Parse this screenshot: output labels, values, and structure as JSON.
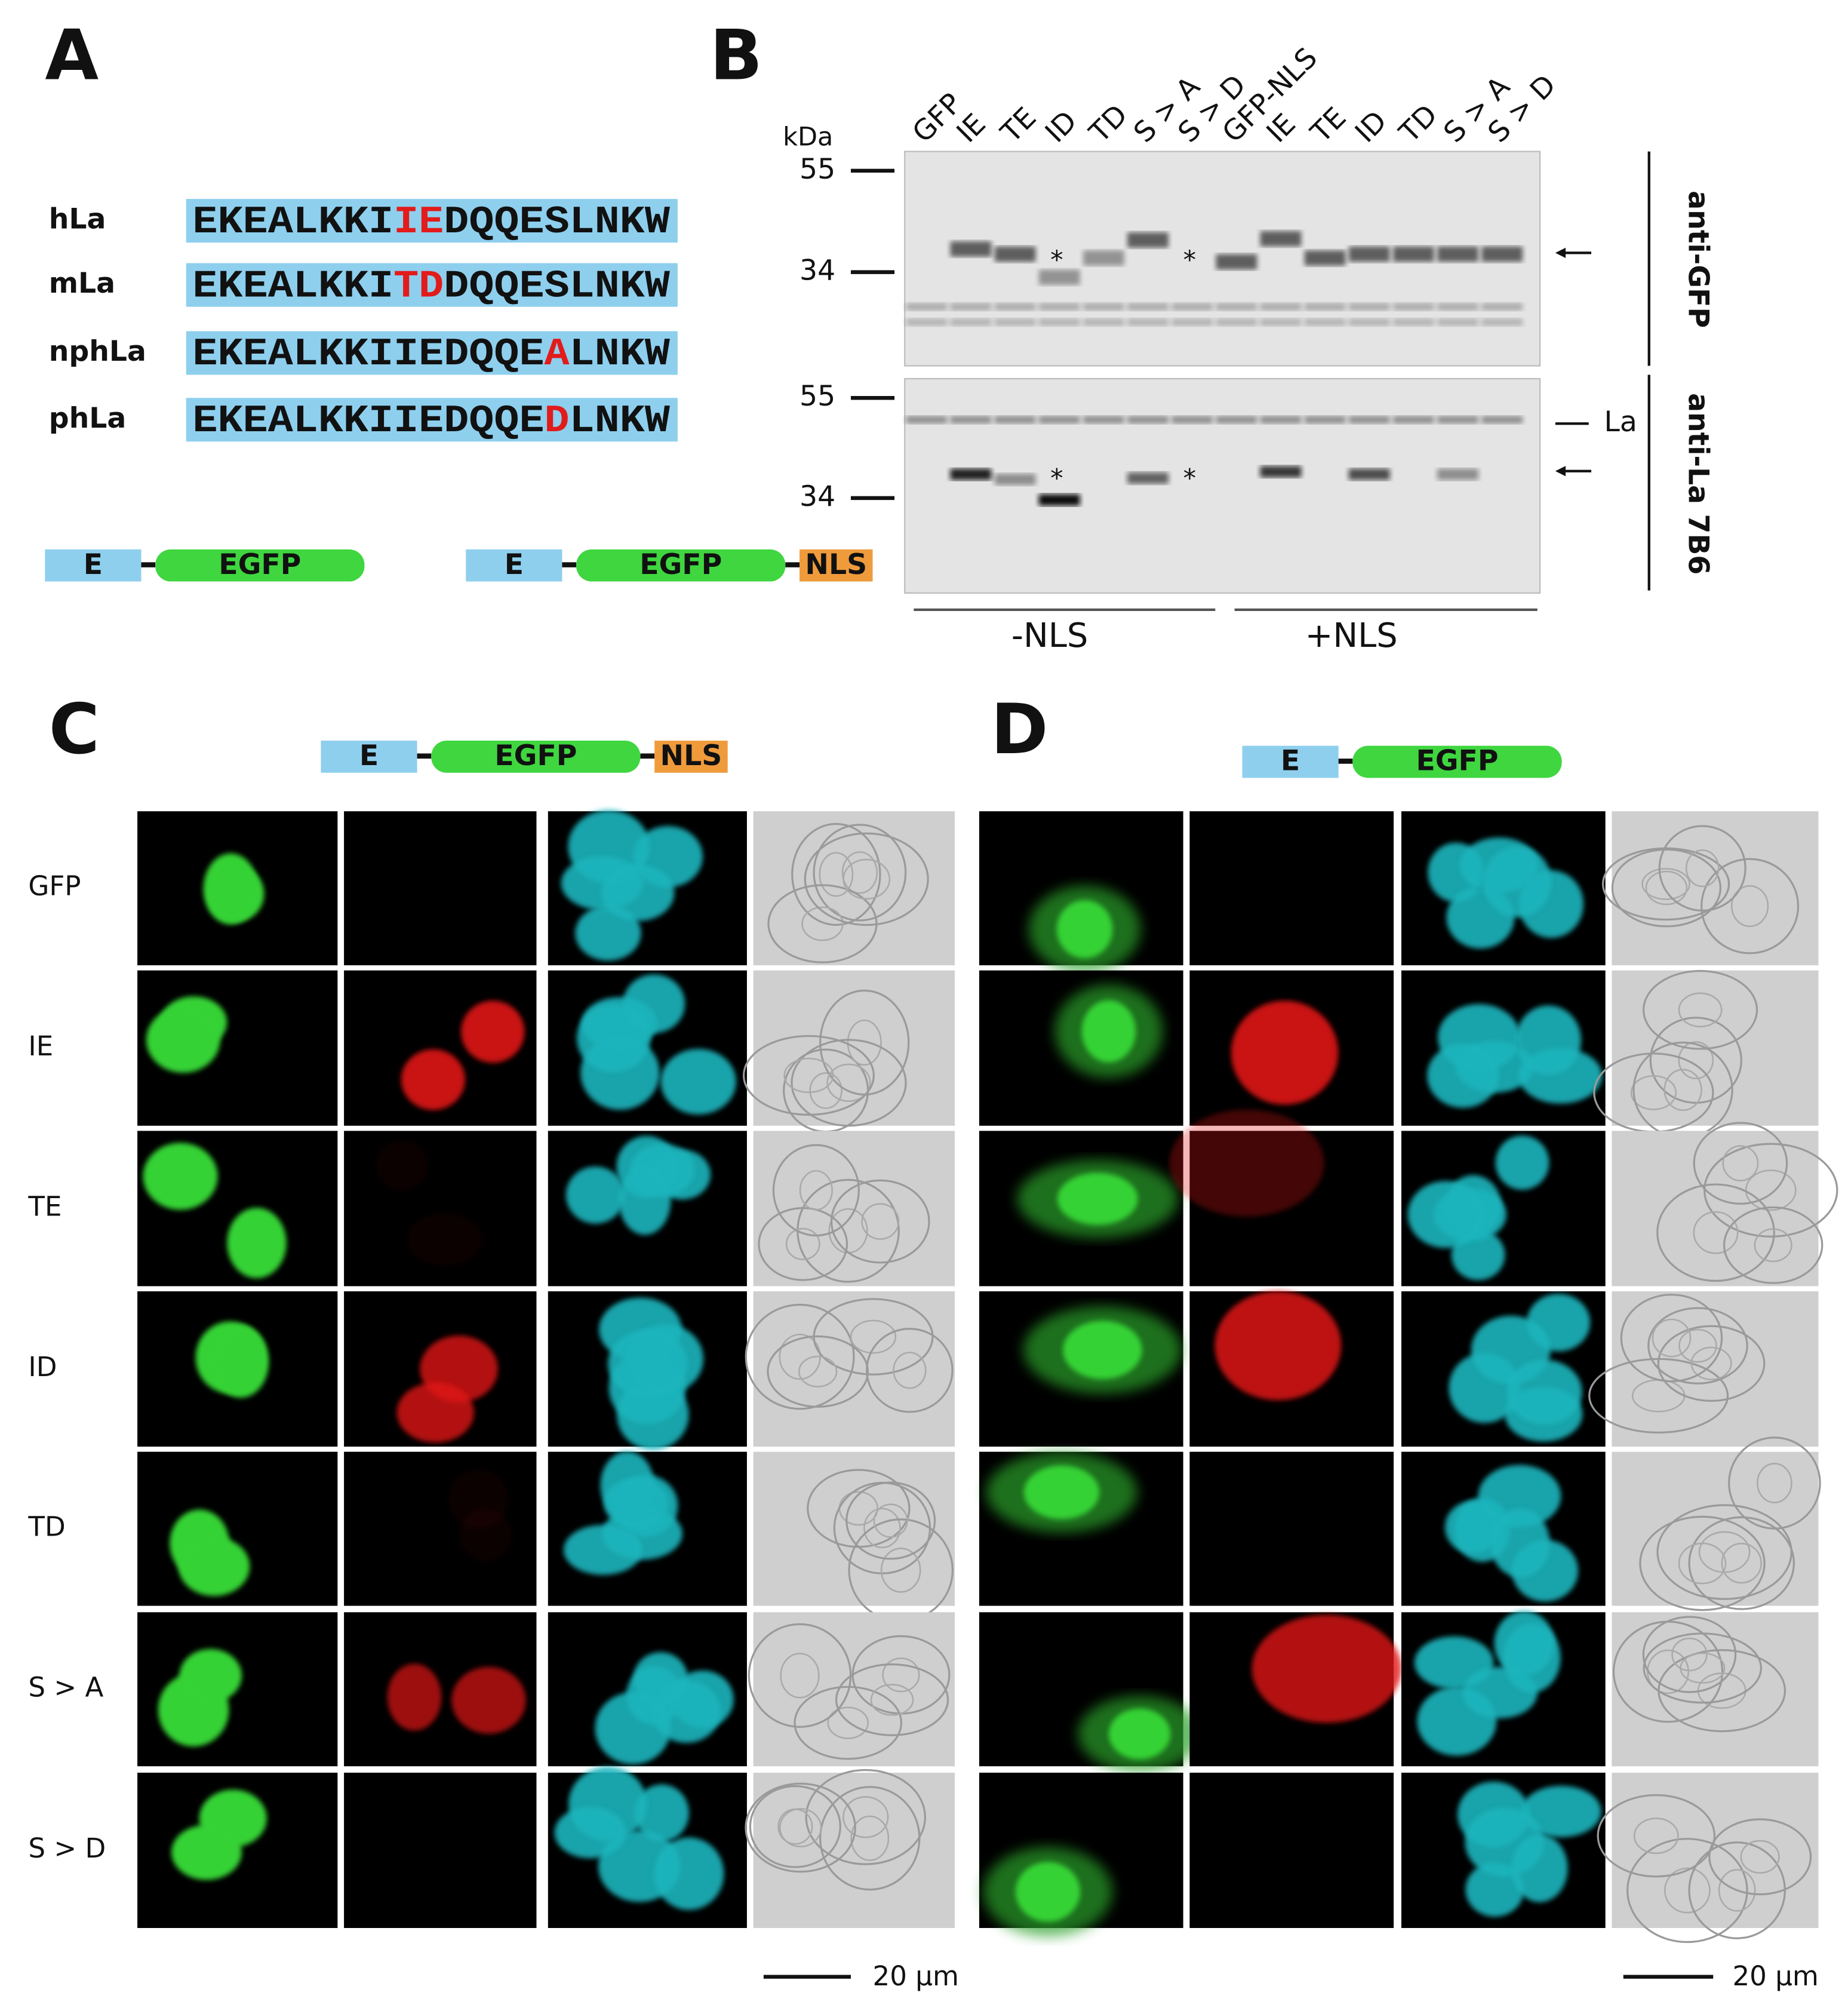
{
  "panel_a": {
    "label": "A",
    "sequences": [
      {
        "name": "hLa",
        "before": "EKEALKKI",
        "mutation": "IE",
        "after": "DQQESLNKW"
      },
      {
        "name": "mLa",
        "before": "EKEALKKI",
        "mutation": "TD",
        "after": "DQQESLNKW"
      },
      {
        "name": "nphLa",
        "before": "EKEALKKIIEDQQE",
        "mutation": "A",
        "after": "LNKW"
      },
      {
        "name": "phLa",
        "before": "EKEALKKIIEDQQE",
        "mutation": "D",
        "after": "LNKW"
      }
    ],
    "constructs": [
      [
        "E",
        "EGFP"
      ],
      [
        "E",
        "EGFP",
        "NLS"
      ]
    ]
  },
  "panel_b": {
    "label": "B",
    "unit": "kDa",
    "lanes": [
      "GFP",
      "IE",
      "TE",
      "ID",
      "TD",
      "S > A",
      "S > D",
      "GFP-NLS",
      "IE",
      "TE",
      "ID",
      "TD",
      "S > A",
      "S > D"
    ],
    "markers": [
      55,
      34
    ],
    "asterisk": "*",
    "groups": [
      "-NLS",
      "+NLS"
    ],
    "antibodies": [
      "anti-GFP",
      "anti-La 7B6"
    ],
    "la_label": "La"
  },
  "panel_c": {
    "label": "C",
    "construct": [
      "E",
      "EGFP",
      "NLS"
    ],
    "rows": [
      "GFP",
      "IE",
      "TE",
      "ID",
      "TD",
      "S > A",
      "S > D"
    ],
    "scale": "20 μm"
  },
  "panel_d": {
    "label": "D",
    "construct": [
      "E",
      "EGFP"
    ],
    "scale": "20 μm"
  }
}
